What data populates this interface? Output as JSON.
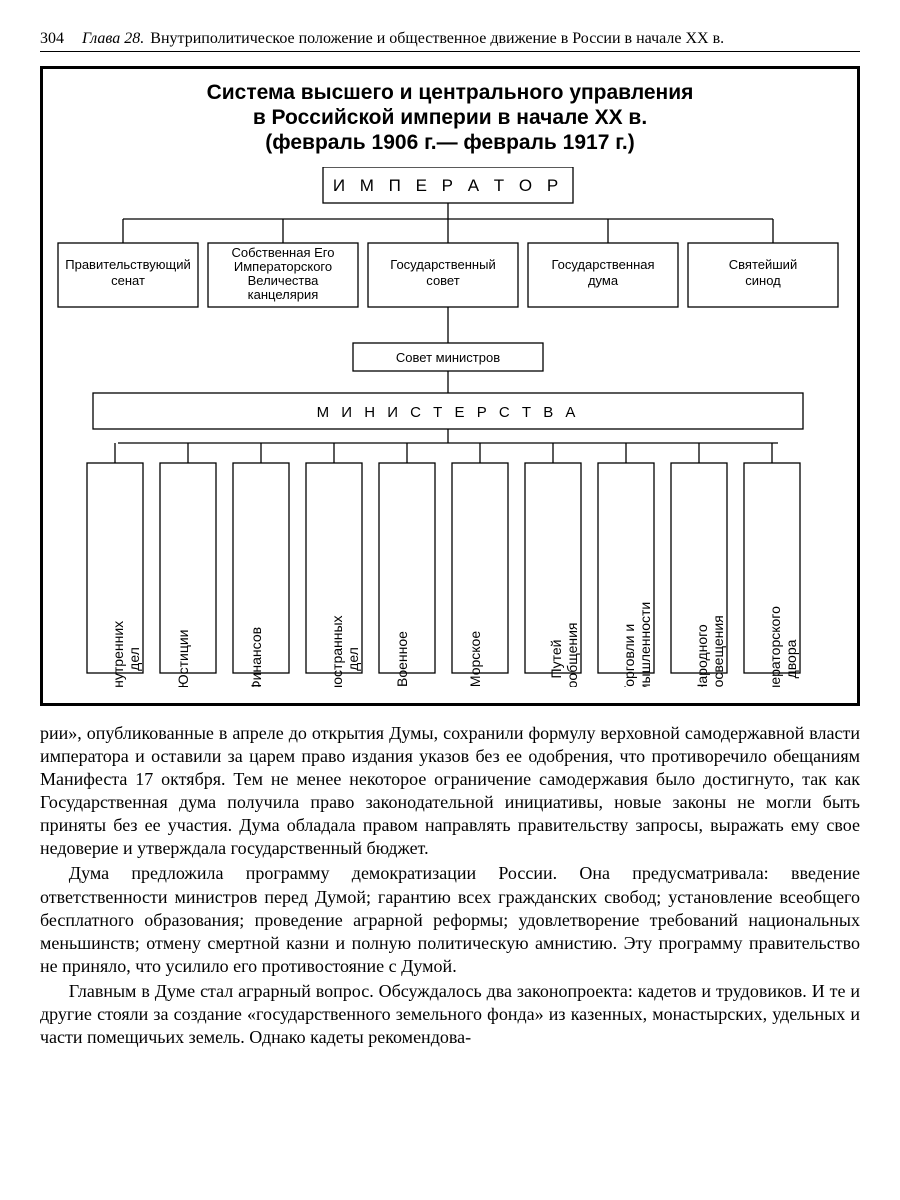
{
  "page": {
    "number": "304",
    "chapter_label": "Глава 28.",
    "chapter_title": "Внутриполитическое положение и общественное движение в России в начале XX в."
  },
  "diagram": {
    "title_line1": "Система высшего и центрального управления",
    "title_line2": "в Российской империи в начале XX в.",
    "title_line3": "(февраль 1906 г.— февраль 1917 г.)",
    "colors": {
      "bg": "#ffffff",
      "stroke": "#000000"
    },
    "type": "tree",
    "emperor": "И М П Е Р А Т О Р",
    "row2": [
      {
        "l1": "Правительствующий",
        "l2": "сенат"
      },
      {
        "l1": "Собственная Его",
        "l2": "Императорского",
        "l3": "Величества",
        "l4": "канцелярия"
      },
      {
        "l1": "Государственный",
        "l2": "совет"
      },
      {
        "l1": "Государственная",
        "l2": "дума"
      },
      {
        "l1": "Святейший",
        "l2": "синод"
      }
    ],
    "council": "Совет министров",
    "ministries_label": "М И Н И С Т Е Р С Т В А",
    "ministries": [
      "Внутренних\nдел",
      "Юстиции",
      "Финансов",
      "Иностранных\nдел",
      "Военное",
      "Морское",
      "Путей\nсообщения",
      "Торговли и\nпромышленности",
      "Народного\nпросвещения",
      "Императорского\nдвора"
    ]
  },
  "paragraphs": {
    "p1": "рии», опубликованные в апреле до открытия Думы, сохранили формулу верховной самодержавной власти императора и оставили за царем право издания указов без ее одобрения, что противоречило обещаниям Манифеста 17 октября. Тем не менее некоторое ограничение самодержавия было достигнуто, так как Государственная дума получила право законодательной инициативы, новые законы не могли быть приняты без ее участия. Дума обладала правом направлять правительству запросы, выражать ему свое недоверие и утверждала государственный бюджет.",
    "p2": "Дума предложила программу демократизации России. Она предусматривала: введение ответственности министров перед Думой; гарантию всех гражданских свобод; установление всеобщего бесплатного образования; проведение аграрной реформы; удовлетворение требований национальных меньшинств; отмену смертной казни и полную политическую амнистию. Эту программу правительство не приняло, что усилило его противостояние с Думой.",
    "p3": "Главным в Думе стал аграрный вопрос. Обсуждалось два законопроекта: кадетов и трудовиков. И те и другие стояли за создание «государственного земельного фонда» из казенных, монастырских, удельных и части помещичьих земель. Однако кадеты рекомендова-"
  }
}
